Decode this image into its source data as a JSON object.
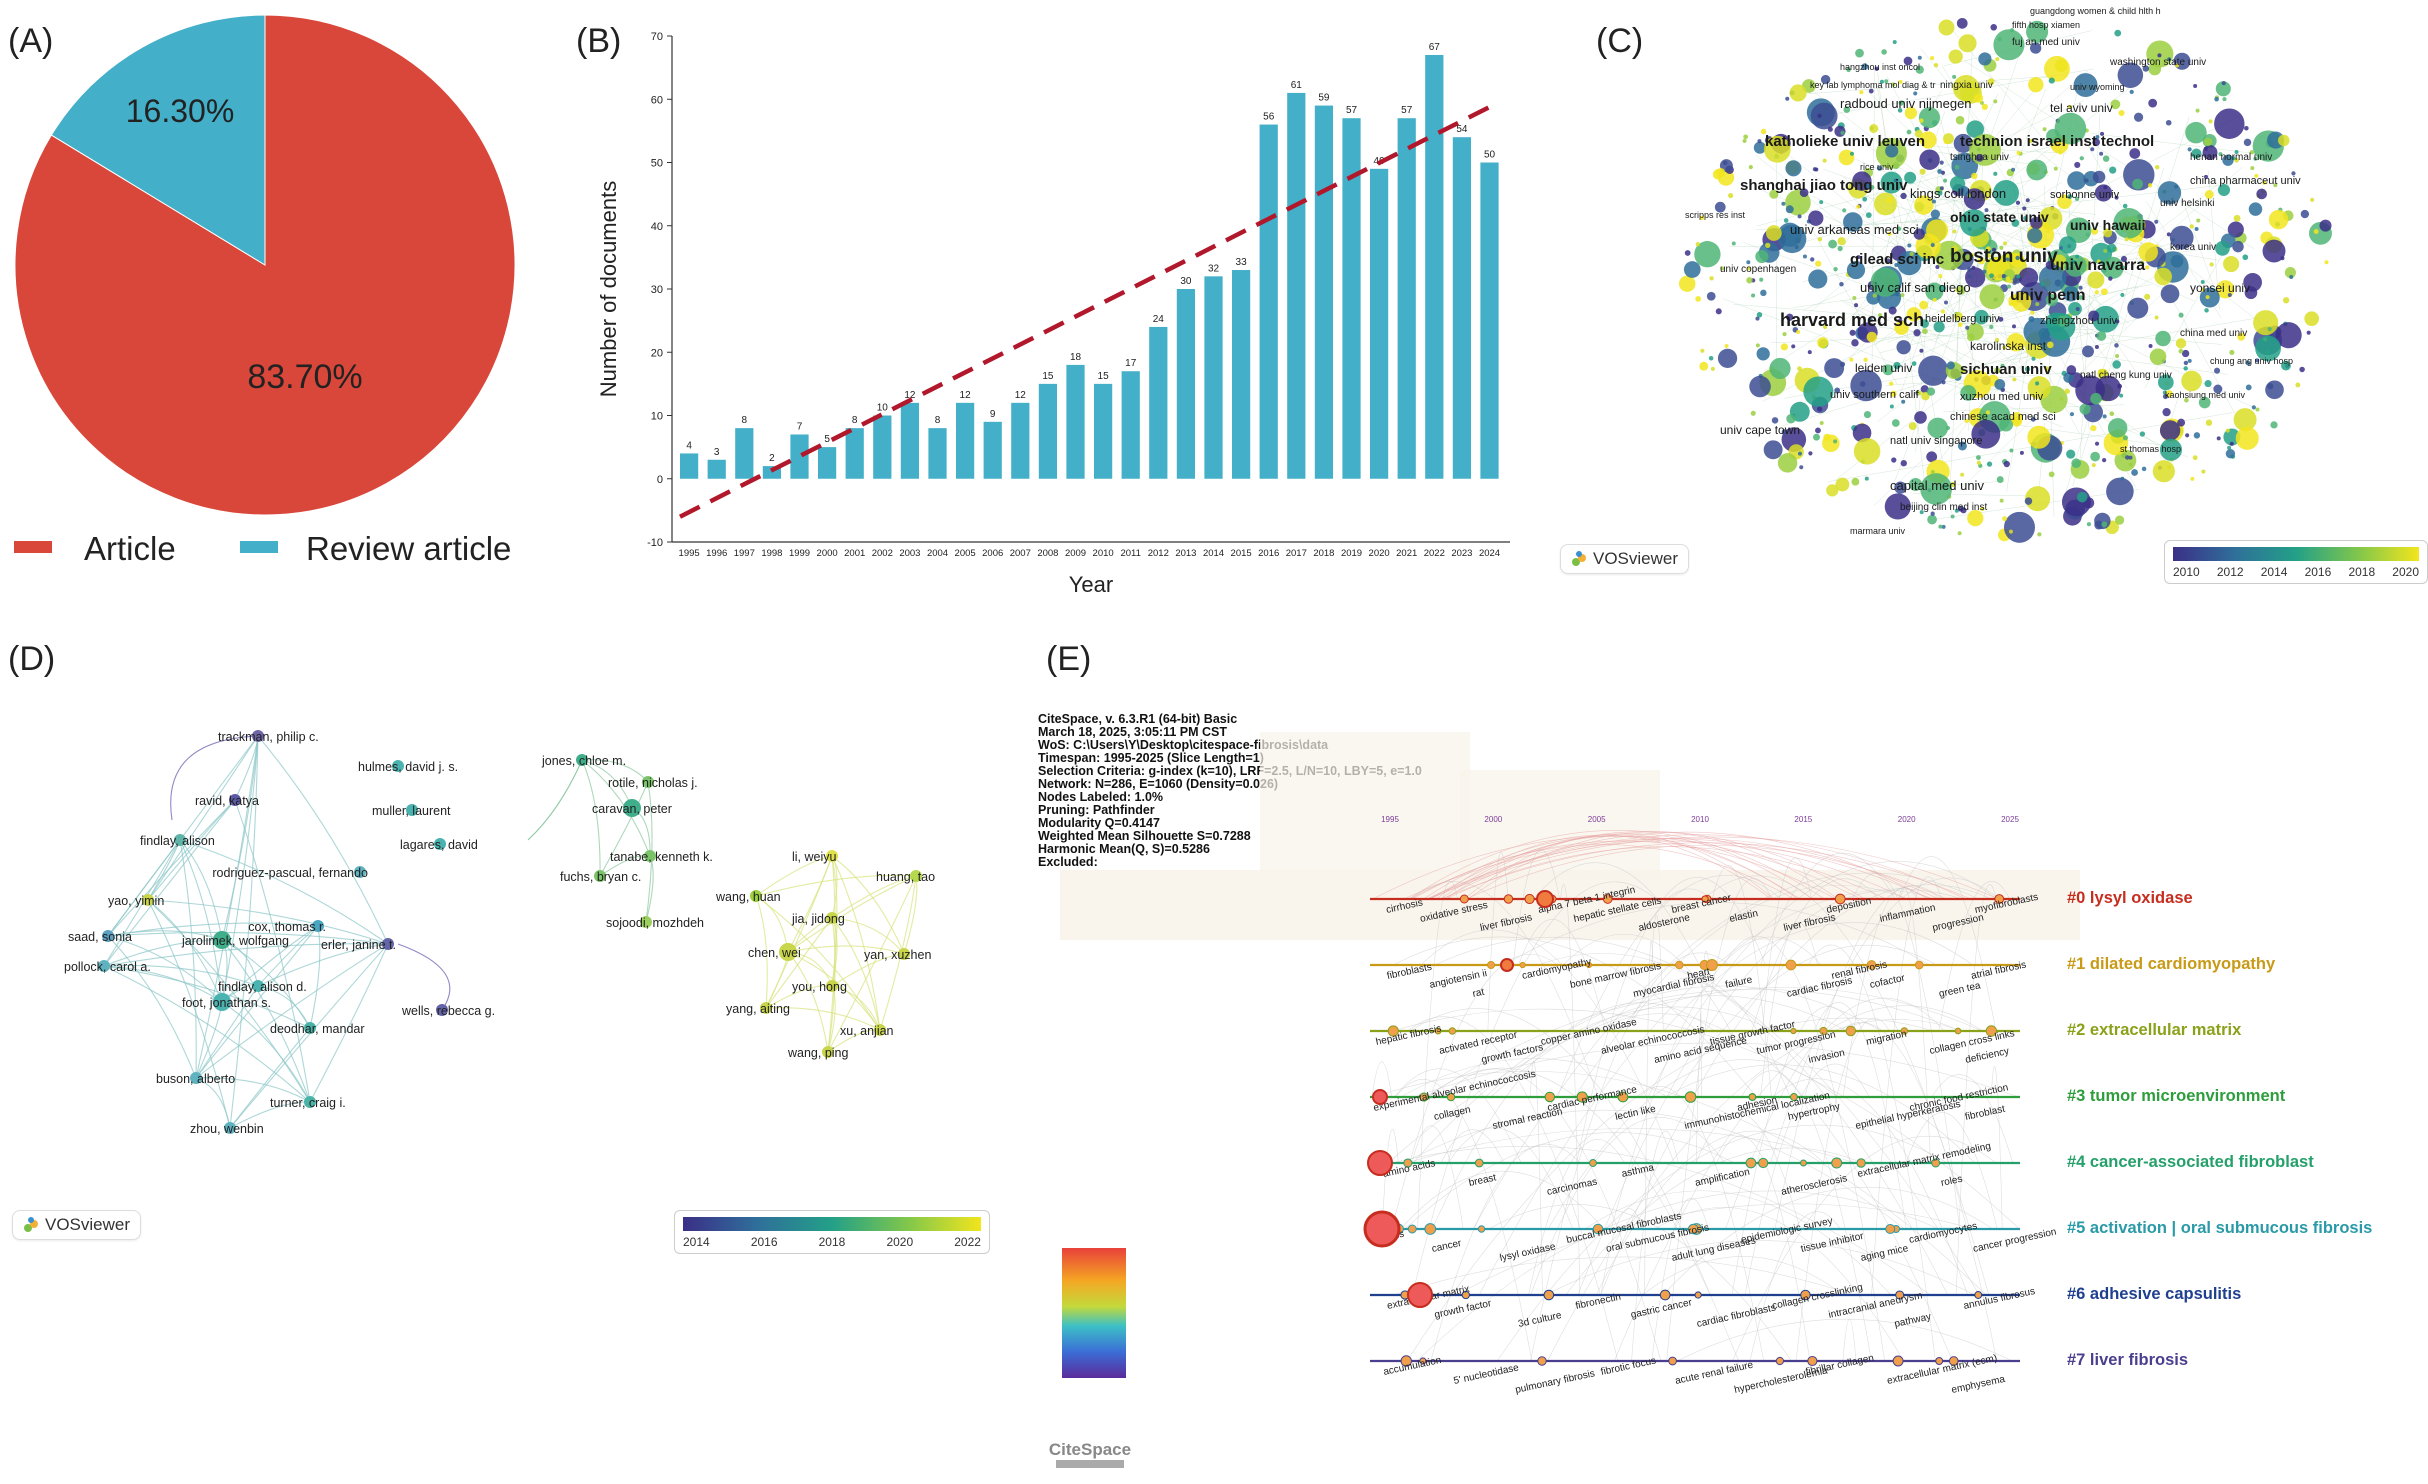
{
  "panels": {
    "a": "(A)",
    "b": "(B)",
    "c": "(C)",
    "d": "(D)",
    "e": "(E)"
  },
  "chart_data": [
    {
      "type": "pie",
      "panel": "(A)",
      "slices": [
        {
          "name": "Article",
          "value": 83.7,
          "label": "83.70%",
          "color": "#d9473a"
        },
        {
          "name": "Review article",
          "value": 16.3,
          "label": "16.30%",
          "color": "#44afc8"
        }
      ],
      "legend": [
        "Article",
        "Review article"
      ]
    },
    {
      "type": "bar",
      "panel": "(B)",
      "categories": [
        "1995",
        "1996",
        "1997",
        "1998",
        "1999",
        "2000",
        "2001",
        "2002",
        "2003",
        "2004",
        "2005",
        "2006",
        "2007",
        "2008",
        "2009",
        "2010",
        "2011",
        "2012",
        "2013",
        "2014",
        "2015",
        "2016",
        "2017",
        "2018",
        "2019",
        "2020",
        "2021",
        "2022",
        "2023",
        "2024"
      ],
      "values": [
        4,
        3,
        8,
        2,
        7,
        5,
        8,
        10,
        12,
        8,
        12,
        9,
        12,
        15,
        18,
        15,
        17,
        24,
        30,
        32,
        33,
        56,
        61,
        59,
        57,
        49,
        57,
        67,
        54,
        50
      ],
      "xlabel": "Year",
      "ylabel": "Number of documents",
      "ylim": [
        -10,
        70
      ],
      "yticks": [
        -10,
        0,
        10,
        20,
        30,
        40,
        50,
        60,
        70
      ],
      "trend_line": {
        "start": -6,
        "end": 59.5,
        "color": "#b2182b",
        "style": "dashed"
      },
      "bar_color": "#44afc8"
    }
  ],
  "vos_c": {
    "logo": "VOSviewer",
    "colorbar_ticks": [
      "2010",
      "2012",
      "2014",
      "2016",
      "2018",
      "2020"
    ],
    "labels": [
      {
        "t": "guangdong women & child hlth h",
        "s": 9
      },
      {
        "t": "fifth hosp xiamen",
        "s": 9
      },
      {
        "t": "fuj an med univ",
        "s": 10
      },
      {
        "t": "hangzhou inst oncol",
        "s": 9
      },
      {
        "t": "washington state univ",
        "s": 10
      },
      {
        "t": "key lab lymphoma mol diag & tr",
        "s": 9
      },
      {
        "t": "ningxia univ",
        "s": 10
      },
      {
        "t": "univ wyoming",
        "s": 9
      },
      {
        "t": "radboud univ nijmegen",
        "s": 13
      },
      {
        "t": "tel aviv univ",
        "s": 12
      },
      {
        "t": "katholieke univ leuven",
        "s": 15
      },
      {
        "t": "technion israel inst technol",
        "s": 15
      },
      {
        "t": "henan normal univ",
        "s": 10
      },
      {
        "t": "tsinghua univ",
        "s": 10
      },
      {
        "t": "rice univ",
        "s": 9
      },
      {
        "t": "china pharmaceut univ",
        "s": 11
      },
      {
        "t": "shanghai jiao tong univ",
        "s": 15
      },
      {
        "t": "kings coll london",
        "s": 13
      },
      {
        "t": "sorbonne univ",
        "s": 11
      },
      {
        "t": "univ helsinki",
        "s": 10
      },
      {
        "t": "scripps res inst",
        "s": 9
      },
      {
        "t": "ohio state univ",
        "s": 14
      },
      {
        "t": "univ hawaii",
        "s": 14
      },
      {
        "t": "univ arkansas med sci",
        "s": 13
      },
      {
        "t": "boston univ",
        "s": 19
      },
      {
        "t": "gilead sci inc",
        "s": 15
      },
      {
        "t": "univ navarra",
        "s": 16
      },
      {
        "t": "korea univ",
        "s": 10
      },
      {
        "t": "univ copenhagen",
        "s": 10
      },
      {
        "t": "univ calif san diego",
        "s": 13
      },
      {
        "t": "univ penn",
        "s": 16
      },
      {
        "t": "yonsei univ",
        "s": 12
      },
      {
        "t": "harvard med sch",
        "s": 18
      },
      {
        "t": "heidelberg univ",
        "s": 11
      },
      {
        "t": "zhengzhou univ",
        "s": 11
      },
      {
        "t": "china med univ",
        "s": 10
      },
      {
        "t": "leiden univ",
        "s": 12
      },
      {
        "t": "sichuan univ",
        "s": 15
      },
      {
        "t": "natl cheng kung univ",
        "s": 10
      },
      {
        "t": "chung ang univ hosp",
        "s": 9
      },
      {
        "t": "univ southern calif",
        "s": 11
      },
      {
        "t": "xuzhou med univ",
        "s": 11
      },
      {
        "t": "chinese acad med sci",
        "s": 11
      },
      {
        "t": "univ cape town",
        "s": 12
      },
      {
        "t": "natl univ singapore",
        "s": 11
      },
      {
        "t": "capital med univ",
        "s": 13
      },
      {
        "t": "beijing clin med inst",
        "s": 10
      },
      {
        "t": "marmara univ",
        "s": 9
      },
      {
        "t": "karolinska inst",
        "s": 12
      },
      {
        "t": "kaohsiung med univ",
        "s": 9
      },
      {
        "t": "st thomas hosp",
        "s": 9
      }
    ]
  },
  "vos_d": {
    "logo": "VOSviewer",
    "colorbar_ticks": [
      "2014",
      "2016",
      "2018",
      "2020",
      "2022"
    ],
    "authors": [
      "trackman, philip c.",
      "ravid, katya",
      "findlay, alison",
      "yao, yimin",
      "saad, sonia",
      "pollock, carol a.",
      "jarolimek, wolfgang",
      "cox, thomas r.",
      "erler, janine t.",
      "findlay, alison d.",
      "foot, jonathan s.",
      "deodhar, mandar",
      "buson, alberto",
      "turner, craig i.",
      "zhou, wenbin",
      "hulmes, david j. s.",
      "muller, laurent",
      "lagares, david",
      "rodriguez-pascual, fernando",
      "wells, rebecca g.",
      "jones, chloe m.",
      "caravan, peter",
      "rotile, nicholas j.",
      "tanabe, kenneth k.",
      "fuchs, bryan c.",
      "sojoodi, mozhdeh",
      "li, weiyu",
      "huang, tao",
      "wang, huan",
      "jia, jidong",
      "chen, wei",
      "yan, xuzhen",
      "you, hong",
      "yang, aiting",
      "xu, anjian",
      "wang, ping"
    ]
  },
  "citespace": {
    "info": [
      "CiteSpace, v. 6.3.R1 (64-bit) Basic",
      "March 18, 2025, 3:05:11 PM CST",
      "WoS: C:\\Users\\Y\\Desktop\\citespace-fibrosis\\data",
      "Timespan: 1995-2025 (Slice Length=1)",
      "Selection Criteria: g-index (k=10), LRF=2.5, L/N=10, LBY=5, e=1.0",
      "Network: N=286, E=1060 (Density=0.026)",
      "Nodes Labeled: 1.0%",
      "Pruning: Pathfinder",
      "Modularity Q=0.4147",
      "Weighted Mean Silhouette S=0.7288",
      "Harmonic Mean(Q, S)=0.5286",
      "Excluded:"
    ],
    "years": [
      "1995",
      "2000",
      "2005",
      "2010",
      "2015",
      "2020",
      "2025"
    ],
    "logo": "CiteSpace",
    "clusters": [
      {
        "label": "#0 lysyl oxidase",
        "color": "#c62d1f"
      },
      {
        "label": "#1 dilated cardiomyopathy",
        "color": "#c99a16"
      },
      {
        "label": "#2 extracellular matrix",
        "color": "#8aa11a"
      },
      {
        "label": "#3 tumor microenvironment",
        "color": "#2e9e3c"
      },
      {
        "label": "#4 cancer-associated fibroblast",
        "color": "#25a06a"
      },
      {
        "label": "#5 activation | oral submucous fibrosis",
        "color": "#2a9aa8"
      },
      {
        "label": "#6 adhesive capsulitis",
        "color": "#1f3f8f"
      },
      {
        "label": "#7 liver fibrosis",
        "color": "#4a3f8f"
      }
    ],
    "keywords": [
      [
        "cirrhosis",
        "oxidative stress",
        "liver fibrosis",
        "alpha 7 beta 1 integrin",
        "hepatic stellate cells",
        "aldosterone",
        "breast cancer",
        "elastin",
        "liver fibrosis",
        "deposition",
        "inflammation",
        "progression",
        "myofibroblasts"
      ],
      [
        "fibroblasts",
        "angiotensin ii",
        "rat",
        "cardiomyopathy",
        "bone marrow fibrosis",
        "myocardial fibrosis",
        "heart",
        "failure",
        "cardiac fibrosis",
        "renal fibrosis",
        "cofactor",
        "green tea",
        "atrial fibrosis"
      ],
      [
        "hepatic fibrosis",
        "activated receptor",
        "growth factors",
        "copper amino oxidase",
        "alveolar echinococcosis",
        "amino acid sequence",
        "tissue growth factor",
        "tumor progression",
        "invasion",
        "migration",
        "collagen cross links",
        "deficiency"
      ],
      [
        "experimental alveolar echinococcosis",
        "collagen",
        "stromal reaction",
        "cardiac performance",
        "lectin like",
        "immunohistochemical localization",
        "adhesion",
        "hypertrophy",
        "epithelial hyperkeratosis",
        "chronic food restriction",
        "fibroblast"
      ],
      [
        "amino acids",
        "breast",
        "carcinomas",
        "asthma",
        "amplification",
        "atherosclerosis",
        "extracellular matrix remodeling",
        "roles"
      ],
      [
        "fibrosis",
        "cancer",
        "lysyl oxidase",
        "buccal mucosal fibroblasts",
        "oral submucous fibrosis",
        "adult lung diseases",
        "epidemiologic survey",
        "tissue inhibitor",
        "aging mice",
        "cardiomyocytes",
        "cancer progression"
      ],
      [
        "extracellular matrix",
        "growth factor",
        "3d culture",
        "fibronectin",
        "gastric cancer",
        "cardiac fibroblasts",
        "collagen crosslinking",
        "intracranial aneurysm",
        "pathway",
        "annulus fibrosus"
      ],
      [
        "accumulation",
        "5' nucleotidase",
        "pulmonary fibrosis",
        "fibrotic focus",
        "acute renal failure",
        "hypercholesterolemia",
        "fibrillar collagen",
        "extracellular matrix (ecm)",
        "emphysema"
      ]
    ]
  }
}
